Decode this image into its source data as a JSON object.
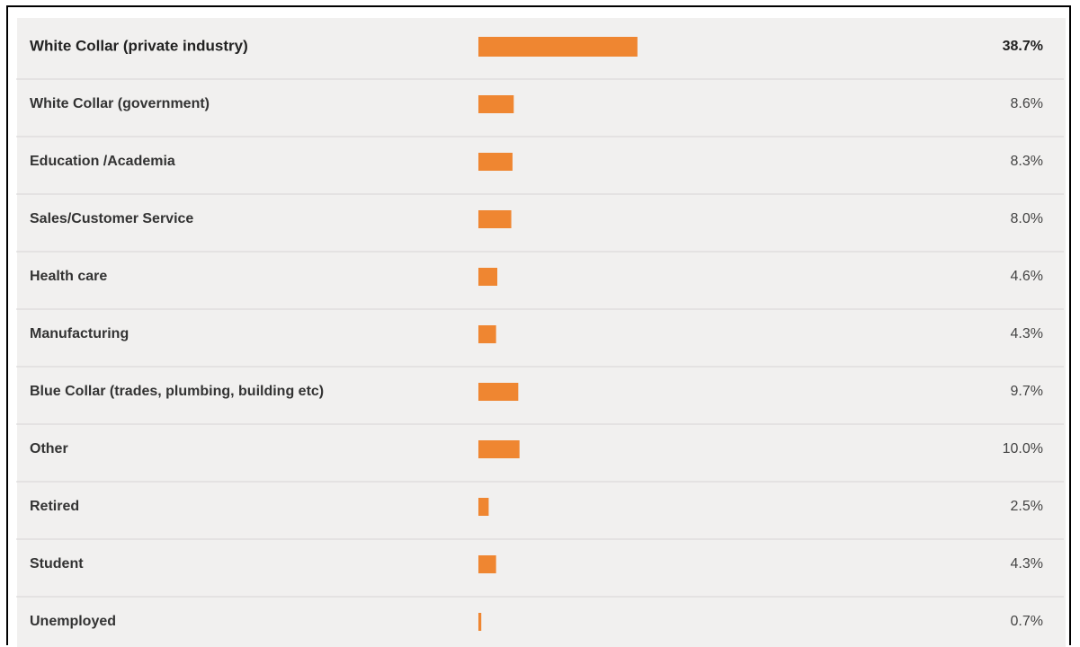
{
  "chart_data": {
    "type": "bar",
    "orientation": "horizontal",
    "color": "#ef8631",
    "categories": [
      "White Collar (private industry)",
      "White Collar (government)",
      "Education /Academia",
      "Sales/Customer Service",
      "Health care",
      "Manufacturing",
      "Blue Collar (trades, plumbing, building etc)",
      "Other",
      "Retired",
      "Student",
      "Unemployed"
    ],
    "values": [
      38.7,
      8.6,
      8.3,
      8.0,
      4.6,
      4.3,
      9.7,
      10.0,
      2.5,
      4.3,
      0.7
    ],
    "value_labels": [
      "38.7%",
      "8.6%",
      "8.3%",
      "8.0%",
      "4.6%",
      "4.3%",
      "9.7%",
      "10.0%",
      "2.5%",
      "4.3%",
      "0.7%"
    ]
  }
}
